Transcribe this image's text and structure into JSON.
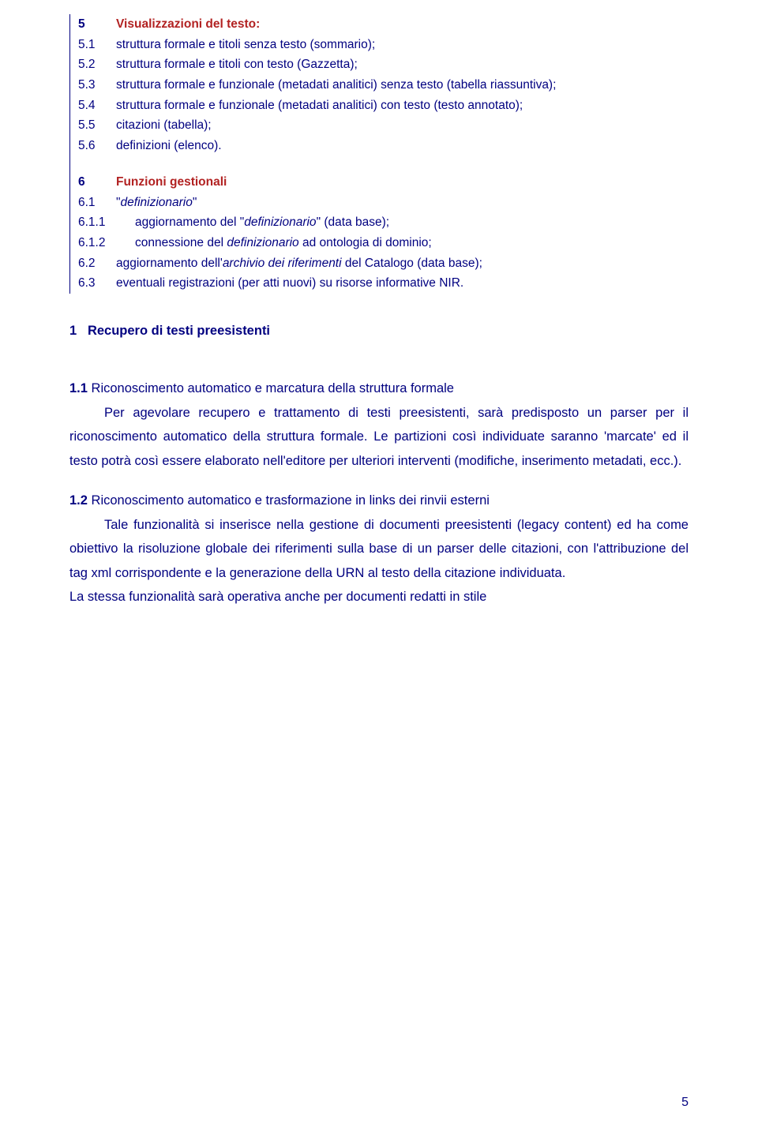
{
  "table": {
    "section5": {
      "num": "5",
      "title": "Visualizzazioni del testo:",
      "rows": [
        {
          "num": "5.1",
          "text": "struttura formale e titoli senza testo (sommario);"
        },
        {
          "num": "5.2",
          "text": "struttura formale e titoli con testo (Gazzetta);"
        },
        {
          "num": "5.3",
          "text": "struttura formale e funzionale (metadati analitici) senza testo (tabella riassuntiva);"
        },
        {
          "num": "5.4",
          "text": "struttura formale e funzionale (metadati analitici) con testo (testo annotato);"
        },
        {
          "num": "5.5",
          "text": "citazioni (tabella);"
        },
        {
          "num": "5.6",
          "text": "definizioni (elenco)."
        }
      ]
    },
    "section6": {
      "num": "6",
      "title": "Funzioni gestionali",
      "rows": [
        {
          "num": "6.1",
          "pre": "\"",
          "italic": "definizionario",
          "post": "\""
        },
        {
          "num": "6.1.1",
          "pre": "aggiornamento del \"",
          "italic": "definizionario",
          "post": "\" (data base);"
        },
        {
          "num": "6.1.2",
          "pre": "connessione del ",
          "italic": "definizionario",
          "post": " ad ontologia di dominio;"
        },
        {
          "num": "6.2",
          "pre": "aggiornamento dell'",
          "italic": "archivio dei riferimenti",
          "post": " del Catalogo (data base);"
        },
        {
          "num": "6.3",
          "pre": "eventuali registrazioni (per atti nuovi) su risorse informative NIR.",
          "italic": "",
          "post": ""
        }
      ]
    }
  },
  "heading1": {
    "num": "1",
    "text": "Recupero di testi preesistenti"
  },
  "para11": {
    "num": "1.1",
    "title": " Riconoscimento automatico  e marcatura della struttura formale",
    "body": "Per agevolare recupero e trattamento di testi preesistenti, sarà predisposto un parser per il riconoscimento automatico della struttura formale. Le partizioni così individuate saranno 'marcate' ed il testo potrà così essere elaborato nell'editore per ulteriori interventi (modifiche, inserimento  metadati, ecc.)."
  },
  "para12": {
    "num": "1.2",
    "title": " Riconoscimento automatico e trasformazione in links dei rinvii esterni",
    "body1": "Tale funzionalità si inserisce nella gestione di documenti preesistenti (legacy content) ed ha come obiettivo la risoluzione globale dei riferimenti sulla base di un parser delle citazioni, con l'attribuzione del tag xml corrispondente e la generazione della URN al testo della citazione individuata.",
    "body2": "La stessa funzionalità sarà operativa anche per documenti redatti in stile"
  },
  "pageNumber": "5"
}
